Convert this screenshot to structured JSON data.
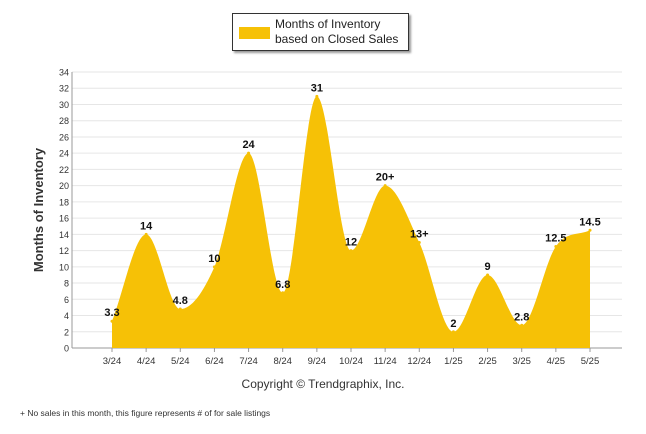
{
  "colors": {
    "fill": "#f6c106",
    "grid": "#e6e6e6",
    "axis": "#999999"
  },
  "legend": {
    "label": "Months of Inventory based on Closed Sales"
  },
  "copyright": "Copyright © Trendgraphix, Inc.",
  "footnote": "+  No sales in this month, this figure represents # of for sale listings",
  "chart_data": {
    "type": "area",
    "ylabel": "Months of Inventory",
    "xlabel": "",
    "ylim": [
      0,
      34
    ],
    "yticks": [
      0,
      2,
      4,
      6,
      8,
      10,
      12,
      14,
      16,
      18,
      20,
      22,
      24,
      26,
      28,
      30,
      32,
      34
    ],
    "grid": true,
    "legend_position": "top-center",
    "categories": [
      "3/24",
      "4/24",
      "5/24",
      "6/24",
      "7/24",
      "8/24",
      "9/24",
      "10/24",
      "11/24",
      "12/24",
      "1/25",
      "2/25",
      "3/25",
      "4/25",
      "5/25"
    ],
    "series": [
      {
        "name": "Months of Inventory based on Closed Sales",
        "values": [
          3.3,
          14,
          4.8,
          10,
          24,
          6.8,
          31,
          12,
          20,
          13,
          2,
          9,
          2.8,
          12.5,
          14.5
        ],
        "labels": [
          "3.3",
          "14",
          "4.8",
          "10",
          "24",
          "6.8",
          "31",
          "12",
          "20+",
          "13+",
          "2",
          "9",
          "2.8",
          "12.5",
          "14.5"
        ]
      }
    ]
  }
}
